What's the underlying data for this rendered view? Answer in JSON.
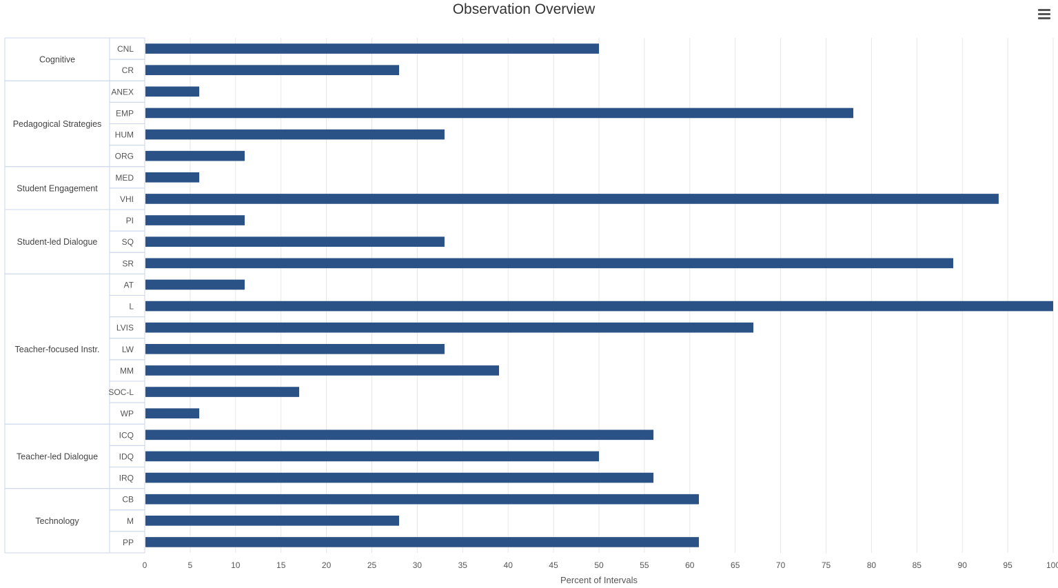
{
  "chart_data": {
    "type": "bar",
    "orientation": "horizontal",
    "title": "Observation Overview",
    "xlabel": "Percent of Intervals",
    "xlim": [
      0,
      100
    ],
    "x_ticks": [
      0,
      5,
      10,
      15,
      20,
      25,
      30,
      35,
      40,
      45,
      50,
      55,
      60,
      65,
      70,
      75,
      80,
      85,
      90,
      95,
      100
    ],
    "grid": true,
    "bar_color": "#2b5286",
    "groups": [
      {
        "name": "Cognitive",
        "items": [
          {
            "label": "CNL",
            "value": 50
          },
          {
            "label": "CR",
            "value": 28
          }
        ]
      },
      {
        "name": "Pedagogical Strategies",
        "items": [
          {
            "label": "ANEX",
            "value": 6
          },
          {
            "label": "EMP",
            "value": 78
          },
          {
            "label": "HUM",
            "value": 33
          },
          {
            "label": "ORG",
            "value": 11
          }
        ]
      },
      {
        "name": "Student Engagement",
        "items": [
          {
            "label": "MED",
            "value": 6
          },
          {
            "label": "VHI",
            "value": 94
          }
        ]
      },
      {
        "name": "Student-led Dialogue",
        "items": [
          {
            "label": "PI",
            "value": 11
          },
          {
            "label": "SQ",
            "value": 33
          },
          {
            "label": "SR",
            "value": 89
          }
        ]
      },
      {
        "name": "Teacher-focused Instr.",
        "items": [
          {
            "label": "AT",
            "value": 11
          },
          {
            "label": "L",
            "value": 100
          },
          {
            "label": "LVIS",
            "value": 67
          },
          {
            "label": "LW",
            "value": 33
          },
          {
            "label": "MM",
            "value": 39
          },
          {
            "label": "SOC-L",
            "value": 17
          },
          {
            "label": "WP",
            "value": 6
          }
        ]
      },
      {
        "name": "Teacher-led Dialogue",
        "items": [
          {
            "label": "ICQ",
            "value": 56
          },
          {
            "label": "IDQ",
            "value": 50
          },
          {
            "label": "IRQ",
            "value": 56
          }
        ]
      },
      {
        "name": "Technology",
        "items": [
          {
            "label": "CB",
            "value": 61
          },
          {
            "label": "M",
            "value": 28
          },
          {
            "label": "PP",
            "value": 61
          }
        ]
      }
    ]
  },
  "menu": {
    "icon": "hamburger-menu-icon"
  }
}
